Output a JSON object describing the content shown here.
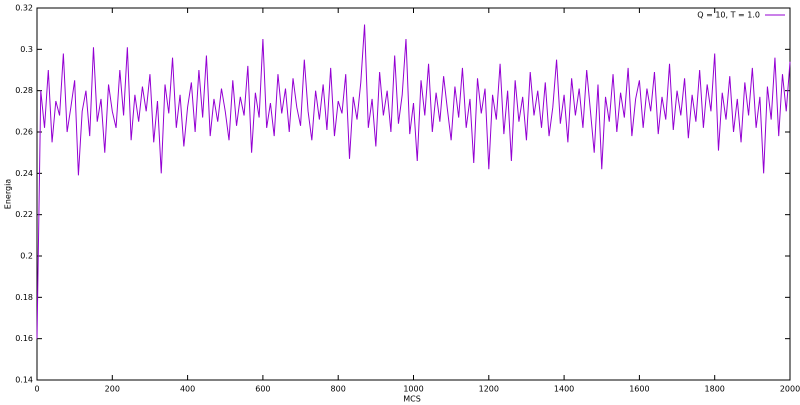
{
  "chart_data": {
    "type": "line",
    "xlabel": "MCS",
    "ylabel": "Energia",
    "xlim": [
      0,
      2000
    ],
    "ylim": [
      0.14,
      0.32
    ],
    "xticks": [
      0,
      200,
      400,
      600,
      800,
      1000,
      1200,
      1400,
      1600,
      1800,
      2000
    ],
    "yticks": [
      0.14,
      0.16,
      0.18,
      0.2,
      0.22,
      0.24,
      0.26,
      0.28,
      0.3,
      0.32
    ],
    "grid": false,
    "legend": "top-right",
    "x": [
      0,
      10,
      20,
      30,
      40,
      50,
      60,
      70,
      80,
      90,
      100,
      110,
      120,
      130,
      140,
      150,
      160,
      170,
      180,
      190,
      200,
      210,
      220,
      230,
      240,
      250,
      260,
      270,
      280,
      290,
      300,
      310,
      320,
      330,
      340,
      350,
      360,
      370,
      380,
      390,
      400,
      410,
      420,
      430,
      440,
      450,
      460,
      470,
      480,
      490,
      500,
      510,
      520,
      530,
      540,
      550,
      560,
      570,
      580,
      590,
      600,
      610,
      620,
      630,
      640,
      650,
      660,
      670,
      680,
      690,
      700,
      710,
      720,
      730,
      740,
      750,
      760,
      770,
      780,
      790,
      800,
      810,
      820,
      830,
      840,
      850,
      860,
      870,
      880,
      890,
      900,
      910,
      920,
      930,
      940,
      950,
      960,
      970,
      980,
      990,
      1000,
      1010,
      1020,
      1030,
      1040,
      1050,
      1060,
      1070,
      1080,
      1090,
      1100,
      1110,
      1120,
      1130,
      1140,
      1150,
      1160,
      1170,
      1180,
      1190,
      1200,
      1210,
      1220,
      1230,
      1240,
      1250,
      1260,
      1270,
      1280,
      1290,
      1300,
      1310,
      1320,
      1330,
      1340,
      1350,
      1360,
      1370,
      1380,
      1390,
      1400,
      1410,
      1420,
      1430,
      1440,
      1450,
      1460,
      1470,
      1480,
      1490,
      1500,
      1510,
      1520,
      1530,
      1540,
      1550,
      1560,
      1570,
      1580,
      1590,
      1600,
      1610,
      1620,
      1630,
      1640,
      1650,
      1660,
      1670,
      1680,
      1690,
      1700,
      1710,
      1720,
      1730,
      1740,
      1750,
      1760,
      1770,
      1780,
      1790,
      1800,
      1810,
      1820,
      1830,
      1840,
      1850,
      1860,
      1870,
      1880,
      1890,
      1900,
      1910,
      1920,
      1930,
      1940,
      1950,
      1960,
      1970,
      1980,
      1990,
      2000
    ],
    "series": [
      {
        "name": "Q = 10, T = 1.0",
        "color": "#9400d3",
        "values": [
          0.16,
          0.28,
          0.262,
          0.29,
          0.255,
          0.275,
          0.268,
          0.298,
          0.26,
          0.272,
          0.285,
          0.239,
          0.27,
          0.28,
          0.258,
          0.301,
          0.265,
          0.276,
          0.25,
          0.283,
          0.27,
          0.262,
          0.29,
          0.268,
          0.301,
          0.256,
          0.278,
          0.265,
          0.282,
          0.27,
          0.288,
          0.255,
          0.275,
          0.24,
          0.283,
          0.269,
          0.296,
          0.262,
          0.278,
          0.253,
          0.272,
          0.284,
          0.26,
          0.29,
          0.267,
          0.297,
          0.258,
          0.276,
          0.265,
          0.281,
          0.27,
          0.256,
          0.285,
          0.263,
          0.277,
          0.268,
          0.292,
          0.25,
          0.279,
          0.267,
          0.305,
          0.262,
          0.274,
          0.258,
          0.288,
          0.269,
          0.281,
          0.26,
          0.286,
          0.272,
          0.263,
          0.295,
          0.27,
          0.256,
          0.28,
          0.266,
          0.283,
          0.261,
          0.291,
          0.258,
          0.275,
          0.269,
          0.288,
          0.247,
          0.277,
          0.266,
          0.284,
          0.312,
          0.262,
          0.276,
          0.253,
          0.289,
          0.268,
          0.28,
          0.26,
          0.297,
          0.264,
          0.278,
          0.305,
          0.259,
          0.274,
          0.246,
          0.285,
          0.268,
          0.293,
          0.26,
          0.279,
          0.265,
          0.287,
          0.271,
          0.256,
          0.282,
          0.267,
          0.291,
          0.262,
          0.276,
          0.245,
          0.286,
          0.269,
          0.281,
          0.242,
          0.278,
          0.266,
          0.293,
          0.259,
          0.28,
          0.246,
          0.285,
          0.265,
          0.277,
          0.256,
          0.289,
          0.268,
          0.28,
          0.262,
          0.284,
          0.258,
          0.272,
          0.295,
          0.264,
          0.278,
          0.255,
          0.286,
          0.268,
          0.281,
          0.262,
          0.29,
          0.27,
          0.25,
          0.283,
          0.242,
          0.277,
          0.265,
          0.288,
          0.26,
          0.279,
          0.267,
          0.291,
          0.258,
          0.276,
          0.285,
          0.262,
          0.281,
          0.27,
          0.289,
          0.259,
          0.277,
          0.266,
          0.293,
          0.261,
          0.28,
          0.268,
          0.286,
          0.257,
          0.278,
          0.265,
          0.29,
          0.262,
          0.283,
          0.27,
          0.298,
          0.251,
          0.279,
          0.266,
          0.287,
          0.26,
          0.276,
          0.255,
          0.284,
          0.268,
          0.291,
          0.262,
          0.277,
          0.24,
          0.282,
          0.266,
          0.296,
          0.258,
          0.288,
          0.27,
          0.294
        ]
      }
    ]
  }
}
